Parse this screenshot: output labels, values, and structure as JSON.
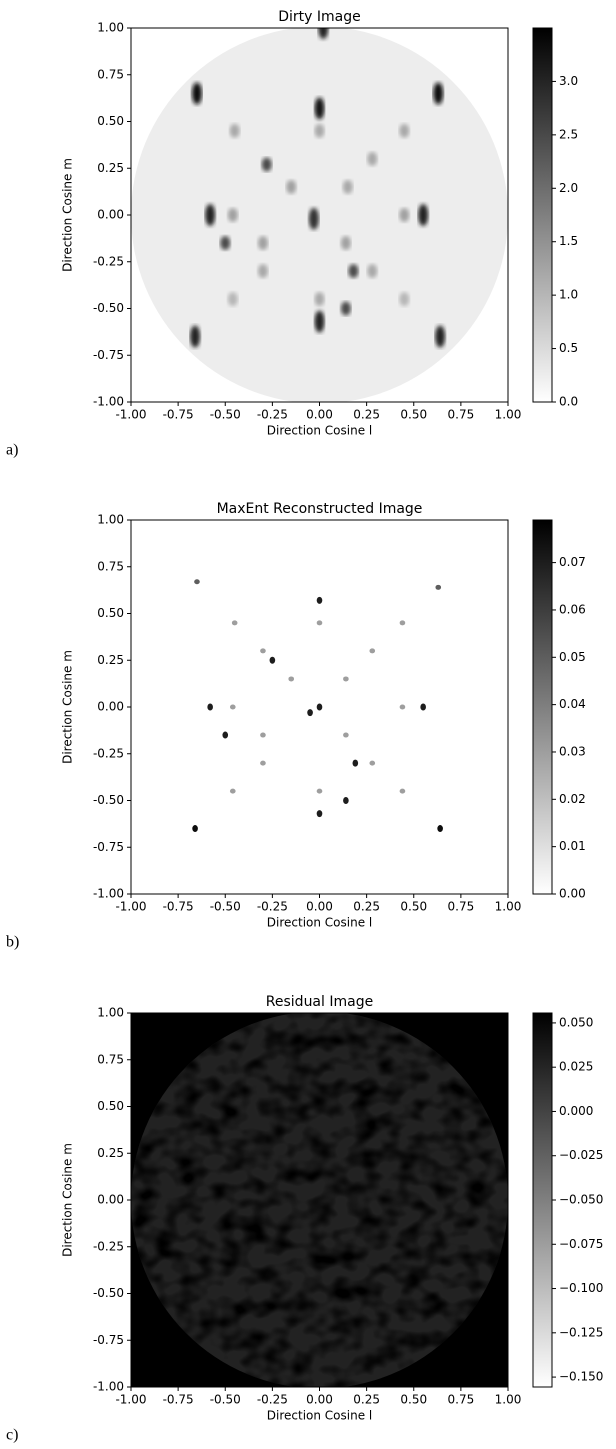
{
  "chart_data": [
    {
      "type": "heatmap",
      "panel_label": "a)",
      "title": "Dirty Image",
      "xlabel": "Direction Cosine l",
      "ylabel": "Direction Cosine m",
      "xlim": [
        -1,
        1
      ],
      "ylim": [
        -1,
        1
      ],
      "xticks": [
        {
          "value": -1,
          "label": "-1.00"
        },
        {
          "value": -0.75,
          "label": "-0.75"
        },
        {
          "value": -0.5,
          "label": "-0.50"
        },
        {
          "value": -0.25,
          "label": "-0.25"
        },
        {
          "value": 0,
          "label": "0.00"
        },
        {
          "value": 0.25,
          "label": "0.25"
        },
        {
          "value": 0.5,
          "label": "0.50"
        },
        {
          "value": 0.75,
          "label": "0.75"
        },
        {
          "value": 1,
          "label": "1.00"
        }
      ],
      "yticks": [
        {
          "value": -1,
          "label": "-1.00"
        },
        {
          "value": -0.75,
          "label": "-0.75"
        },
        {
          "value": -0.5,
          "label": "-0.50"
        },
        {
          "value": -0.25,
          "label": "-0.25"
        },
        {
          "value": 0,
          "label": "0.00"
        },
        {
          "value": 0.25,
          "label": "0.25"
        },
        {
          "value": 0.5,
          "label": "0.50"
        },
        {
          "value": 0.75,
          "label": "0.75"
        },
        {
          "value": 1,
          "label": "1.00"
        }
      ],
      "clim": [
        0,
        3.5
      ],
      "cticks": [
        {
          "value": 0,
          "label": "0.0"
        },
        0.5,
        {
          "value": 1,
          "label": "1.0"
        },
        1.5,
        {
          "value": 2,
          "label": "2.0"
        },
        2.5,
        {
          "value": 3,
          "label": "3.0"
        }
      ],
      "background": 0.25,
      "sources": [
        {
          "l": 0.0,
          "m": 0.57,
          "value": 3.2
        },
        {
          "l": -0.65,
          "m": 0.65,
          "value": 3.3
        },
        {
          "l": 0.63,
          "m": 0.65,
          "value": 3.3
        },
        {
          "l": -0.58,
          "m": 0.0,
          "value": 3.0
        },
        {
          "l": 0.55,
          "m": 0.0,
          "value": 3.0
        },
        {
          "l": -0.03,
          "m": -0.02,
          "value": 2.8
        },
        {
          "l": -0.28,
          "m": 0.27,
          "value": 2.5
        },
        {
          "l": -0.5,
          "m": -0.15,
          "value": 2.5
        },
        {
          "l": 0.18,
          "m": -0.3,
          "value": 2.5
        },
        {
          "l": 0.0,
          "m": -0.57,
          "value": 3.0
        },
        {
          "l": -0.66,
          "m": -0.65,
          "value": 3.0
        },
        {
          "l": 0.64,
          "m": -0.65,
          "value": 3.0
        },
        {
          "l": 0.14,
          "m": -0.5,
          "value": 2.5
        },
        {
          "l": -0.45,
          "m": 0.45,
          "value": 1.2
        },
        {
          "l": 0.45,
          "m": 0.45,
          "value": 1.2
        },
        {
          "l": -0.46,
          "m": 0.0,
          "value": 1.3
        },
        {
          "l": 0.45,
          "m": 0.0,
          "value": 1.3
        },
        {
          "l": -0.3,
          "m": -0.15,
          "value": 1.3
        },
        {
          "l": 0.14,
          "m": -0.15,
          "value": 1.3
        },
        {
          "l": 0.15,
          "m": 0.15,
          "value": 1.2
        },
        {
          "l": -0.3,
          "m": -0.3,
          "value": 1.2
        },
        {
          "l": 0.28,
          "m": -0.3,
          "value": 1.2
        },
        {
          "l": -0.46,
          "m": -0.45,
          "value": 1.0
        },
        {
          "l": 0.45,
          "m": -0.45,
          "value": 1.0
        },
        {
          "l": 0.0,
          "m": 0.45,
          "value": 1.2
        },
        {
          "l": 0.0,
          "m": -0.45,
          "value": 1.2
        },
        {
          "l": -0.15,
          "m": 0.15,
          "value": 1.3
        },
        {
          "l": 0.02,
          "m": 1.0,
          "value": 3.0
        },
        {
          "l": 0.28,
          "m": 0.3,
          "value": 1.2
        }
      ]
    },
    {
      "type": "heatmap",
      "panel_label": "b)",
      "title": "MaxEnt Reconstructed Image",
      "xlabel": "Direction Cosine l",
      "ylabel": "Direction Cosine m",
      "xlim": [
        -1,
        1
      ],
      "ylim": [
        -1,
        1
      ],
      "xticks": [
        {
          "value": -1,
          "label": "-1.00"
        },
        {
          "value": -0.75,
          "label": "-0.75"
        },
        {
          "value": -0.5,
          "label": "-0.50"
        },
        {
          "value": -0.25,
          "label": "-0.25"
        },
        {
          "value": 0,
          "label": "0.00"
        },
        {
          "value": 0.25,
          "label": "0.25"
        },
        {
          "value": 0.5,
          "label": "0.50"
        },
        {
          "value": 0.75,
          "label": "0.75"
        },
        {
          "value": 1,
          "label": "1.00"
        }
      ],
      "yticks": [
        {
          "value": -1,
          "label": "-1.00"
        },
        {
          "value": -0.75,
          "label": "-0.75"
        },
        {
          "value": -0.5,
          "label": "-0.50"
        },
        {
          "value": -0.25,
          "label": "-0.25"
        },
        {
          "value": 0,
          "label": "0.00"
        },
        {
          "value": 0.25,
          "label": "0.25"
        },
        {
          "value": 0.5,
          "label": "0.50"
        },
        {
          "value": 0.75,
          "label": "0.75"
        },
        {
          "value": 1,
          "label": "1.00"
        }
      ],
      "clim": [
        0,
        0.079
      ],
      "cticks": [
        {
          "value": 0,
          "label": "0.00"
        },
        0.01,
        0.02,
        0.03,
        0.04,
        0.05,
        0.06,
        0.07
      ],
      "background": 0,
      "sources": [
        {
          "l": 0.0,
          "m": 0.57,
          "value": 0.07
        },
        {
          "l": -0.65,
          "m": 0.67,
          "value": 0.05
        },
        {
          "l": 0.63,
          "m": 0.64,
          "value": 0.05
        },
        {
          "l": -0.58,
          "m": 0.0,
          "value": 0.07
        },
        {
          "l": 0.55,
          "m": 0.0,
          "value": 0.07
        },
        {
          "l": -0.05,
          "m": -0.03,
          "value": 0.07
        },
        {
          "l": 0.0,
          "m": 0.0,
          "value": 0.07
        },
        {
          "l": -0.25,
          "m": 0.25,
          "value": 0.07
        },
        {
          "l": -0.5,
          "m": -0.15,
          "value": 0.07
        },
        {
          "l": 0.19,
          "m": -0.3,
          "value": 0.07
        },
        {
          "l": 0.0,
          "m": -0.57,
          "value": 0.07
        },
        {
          "l": -0.66,
          "m": -0.65,
          "value": 0.075
        },
        {
          "l": 0.64,
          "m": -0.65,
          "value": 0.075
        },
        {
          "l": 0.14,
          "m": -0.5,
          "value": 0.07
        },
        {
          "l": -0.45,
          "m": 0.45,
          "value": 0.03
        },
        {
          "l": 0.44,
          "m": 0.45,
          "value": 0.03
        },
        {
          "l": -0.46,
          "m": 0.0,
          "value": 0.03
        },
        {
          "l": 0.44,
          "m": 0.0,
          "value": 0.03
        },
        {
          "l": -0.3,
          "m": -0.15,
          "value": 0.03
        },
        {
          "l": 0.14,
          "m": -0.15,
          "value": 0.03
        },
        {
          "l": 0.14,
          "m": 0.15,
          "value": 0.03
        },
        {
          "l": -0.3,
          "m": -0.3,
          "value": 0.03
        },
        {
          "l": 0.28,
          "m": -0.3,
          "value": 0.03
        },
        {
          "l": -0.46,
          "m": -0.45,
          "value": 0.03
        },
        {
          "l": 0.44,
          "m": -0.45,
          "value": 0.03
        },
        {
          "l": 0.0,
          "m": 0.45,
          "value": 0.03
        },
        {
          "l": 0.0,
          "m": -0.45,
          "value": 0.03
        },
        {
          "l": -0.15,
          "m": 0.15,
          "value": 0.03
        },
        {
          "l": -0.3,
          "m": 0.3,
          "value": 0.03
        },
        {
          "l": 0.28,
          "m": 0.3,
          "value": 0.03
        }
      ]
    },
    {
      "type": "residual",
      "panel_label": "c)",
      "title": "Residual Image",
      "xlabel": "Direction Cosine l",
      "ylabel": "Direction Cosine m",
      "xlim": [
        -1,
        1
      ],
      "ylim": [
        -1,
        1
      ],
      "xticks": [
        {
          "value": -1,
          "label": "-1.00"
        },
        {
          "value": -0.75,
          "label": "-0.75"
        },
        {
          "value": -0.5,
          "label": "-0.50"
        },
        {
          "value": -0.25,
          "label": "-0.25"
        },
        {
          "value": 0,
          "label": "0.00"
        },
        {
          "value": 0.25,
          "label": "0.25"
        },
        {
          "value": 0.5,
          "label": "0.50"
        },
        {
          "value": 0.75,
          "label": "0.75"
        },
        {
          "value": 1,
          "label": "1.00"
        }
      ],
      "yticks": [
        {
          "value": -1,
          "label": "-1.00"
        },
        {
          "value": -0.75,
          "label": "-0.75"
        },
        {
          "value": -0.5,
          "label": "-0.50"
        },
        {
          "value": -0.25,
          "label": "-0.25"
        },
        {
          "value": 0,
          "label": "0.00"
        },
        {
          "value": 0.25,
          "label": "0.25"
        },
        {
          "value": 0.5,
          "label": "0.50"
        },
        {
          "value": 0.75,
          "label": "0.75"
        },
        {
          "value": 1,
          "label": "1.00"
        }
      ],
      "clim": [
        -0.1556,
        0.0556
      ],
      "cticks": [
        {
          "value": -0.15,
          "label": "−0.150"
        },
        {
          "value": -0.125,
          "label": "−0.125"
        },
        {
          "value": -0.1,
          "label": "−0.100"
        },
        {
          "value": -0.075,
          "label": "−0.075"
        },
        {
          "value": -0.05,
          "label": "−0.050"
        },
        {
          "value": -0.025,
          "label": "−0.025"
        },
        {
          "value": 0,
          "label": "0.000"
        },
        {
          "value": 0.025,
          "label": "0.025"
        },
        {
          "value": 0.05,
          "label": "0.050"
        }
      ]
    }
  ]
}
